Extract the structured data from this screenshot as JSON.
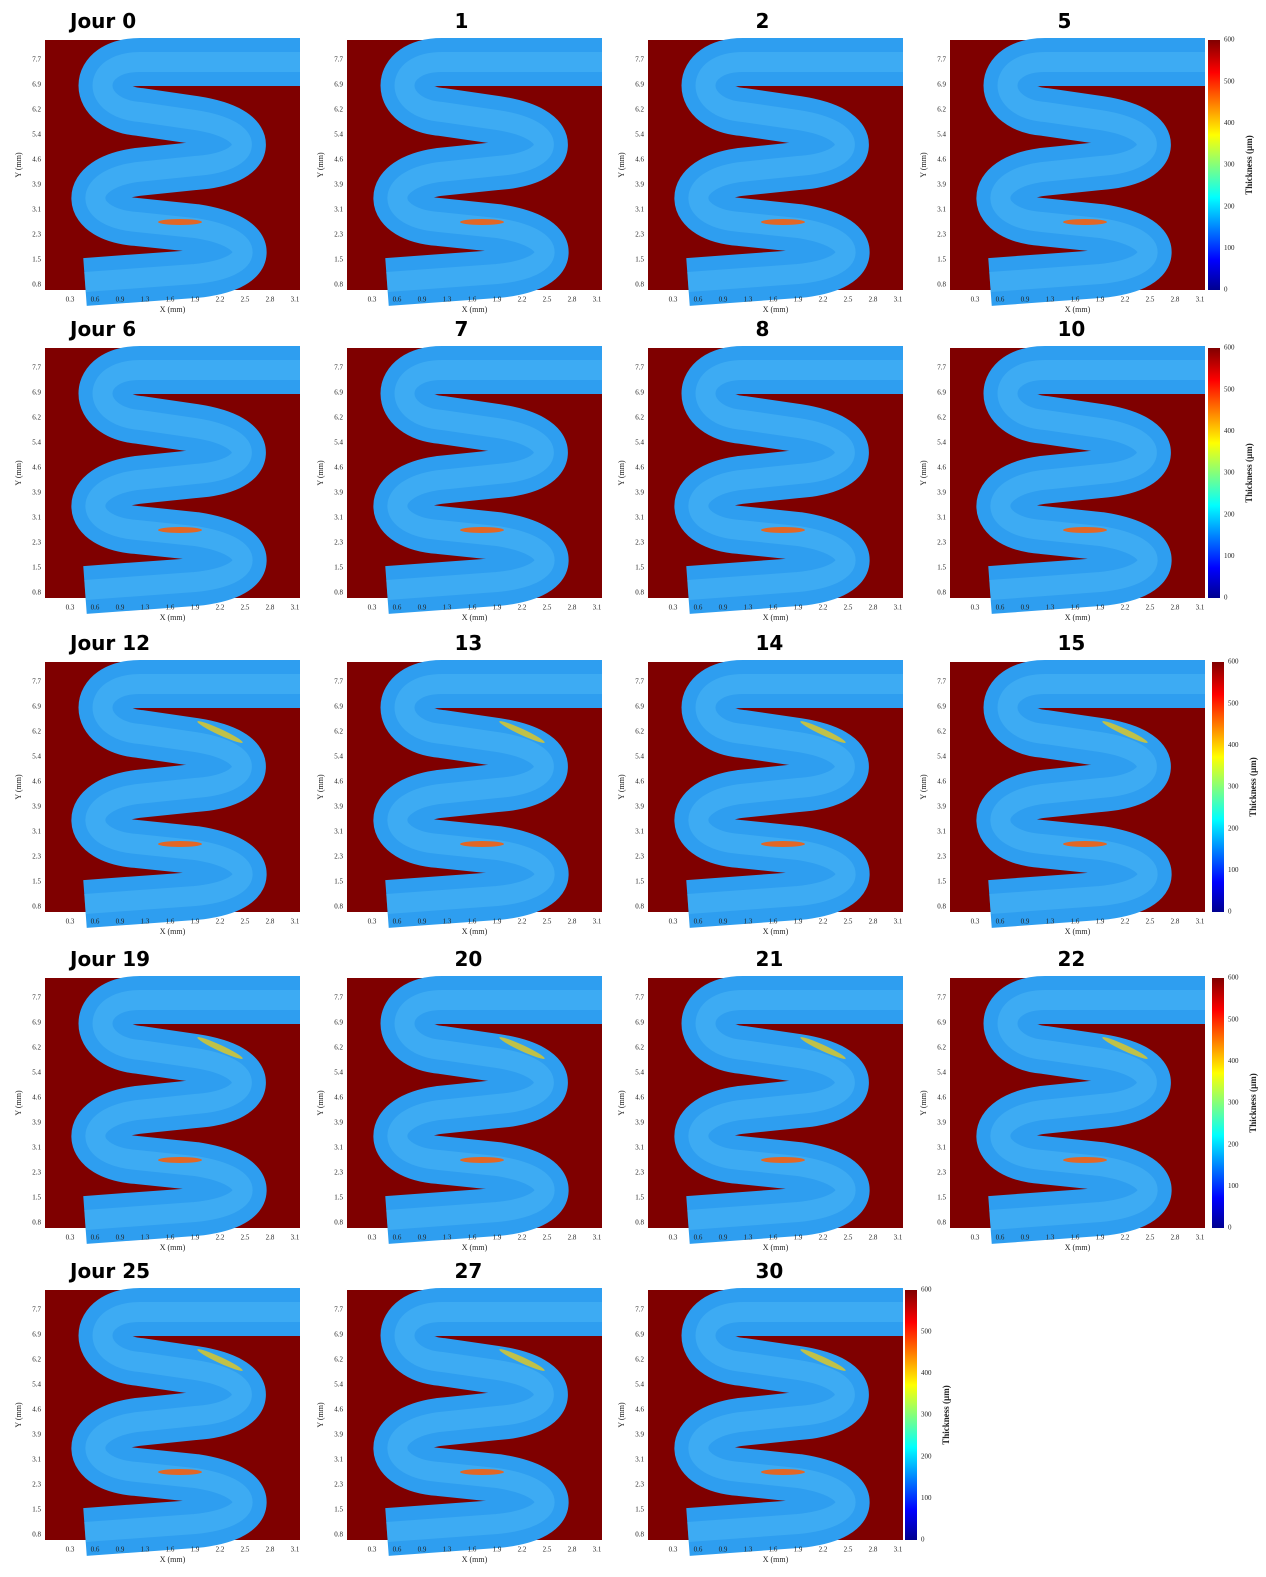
{
  "panels": [
    {
      "label": "Jour 0"
    },
    {
      "label": "1"
    },
    {
      "label": "2"
    },
    {
      "label": "5"
    },
    {
      "label": "Jour 6"
    },
    {
      "label": "7"
    },
    {
      "label": "8"
    },
    {
      "label": "10"
    },
    {
      "label": "Jour 12"
    },
    {
      "label": "13"
    },
    {
      "label": "14"
    },
    {
      "label": "15"
    },
    {
      "label": "Jour 19"
    },
    {
      "label": "20"
    },
    {
      "label": "21"
    },
    {
      "label": "22"
    },
    {
      "label": "Jour 25"
    },
    {
      "label": "27"
    },
    {
      "label": "30"
    }
  ],
  "x_axis": {
    "label": "X (mm)",
    "ticks": [
      "0.3",
      "0.6",
      "0.9",
      "1.3",
      "1.6",
      "1.9",
      "2.2",
      "2.5",
      "2.8",
      "3.1"
    ]
  },
  "y_axis": {
    "label": "Y (mm)",
    "ticks": [
      "0.8",
      "1.5",
      "2.3",
      "3.1",
      "3.9",
      "4.6",
      "5.4",
      "6.2",
      "6.9",
      "7.7"
    ]
  },
  "colorbar": {
    "label": "Thickness (µm)",
    "ticks": [
      "0",
      "100",
      "200",
      "300",
      "400",
      "500",
      "600"
    ]
  }
}
